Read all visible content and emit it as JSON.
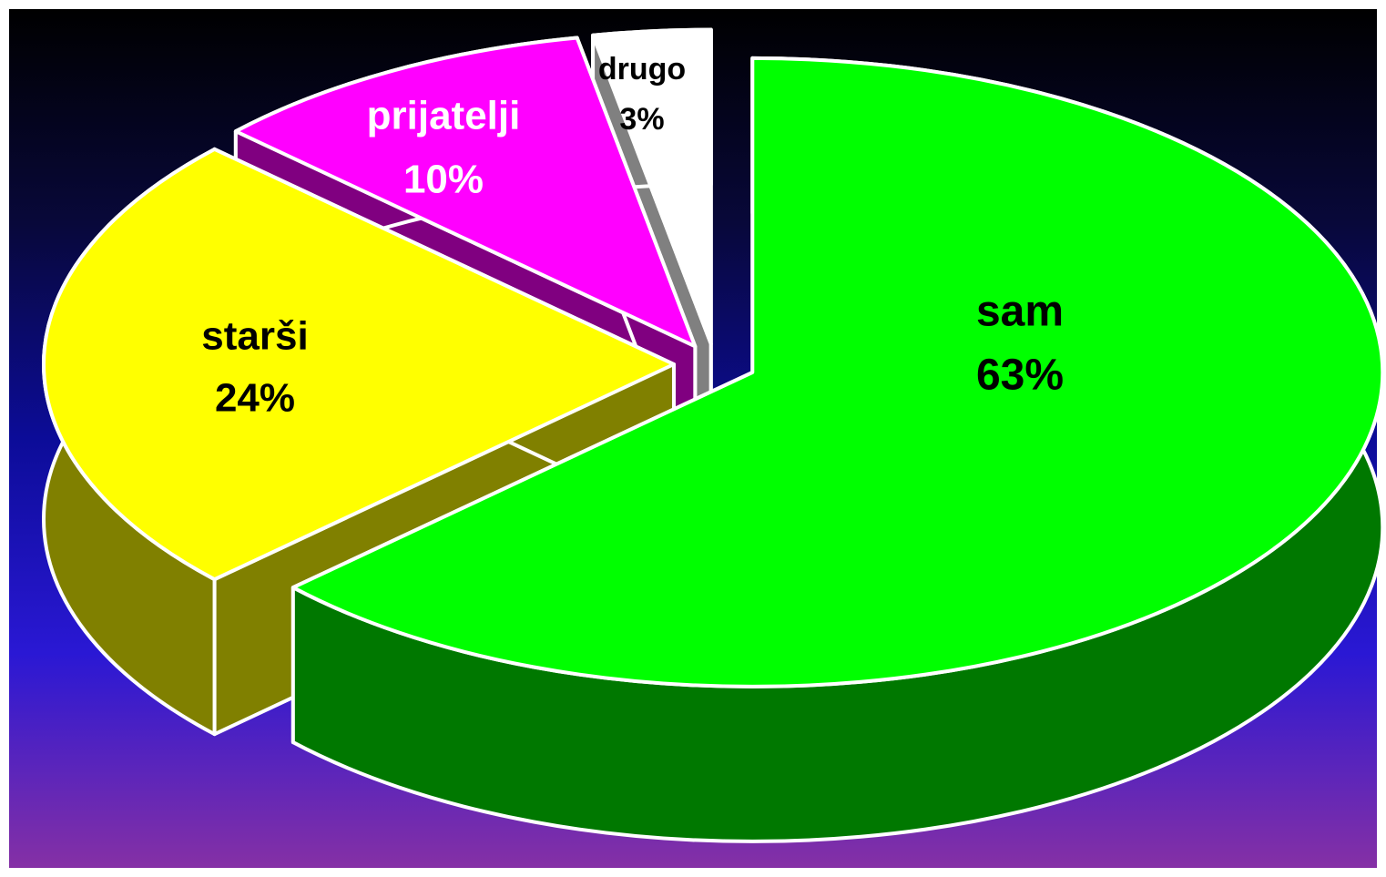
{
  "chart_data": {
    "type": "pie3d",
    "categories": [
      "sam",
      "starši",
      "prijatelji",
      "drugo"
    ],
    "values": [
      63,
      24,
      10,
      3
    ],
    "value_labels": [
      "63%",
      "24%",
      "10%",
      "3%"
    ],
    "colors": [
      "#00ff00",
      "#ffff00",
      "#ff00ff",
      "#ffffff"
    ],
    "side_colors": [
      "#007800",
      "#808000",
      "#800080",
      "#808080"
    ],
    "label_colors": [
      "#000000",
      "#000000",
      "#ffffff",
      "#000000"
    ]
  }
}
